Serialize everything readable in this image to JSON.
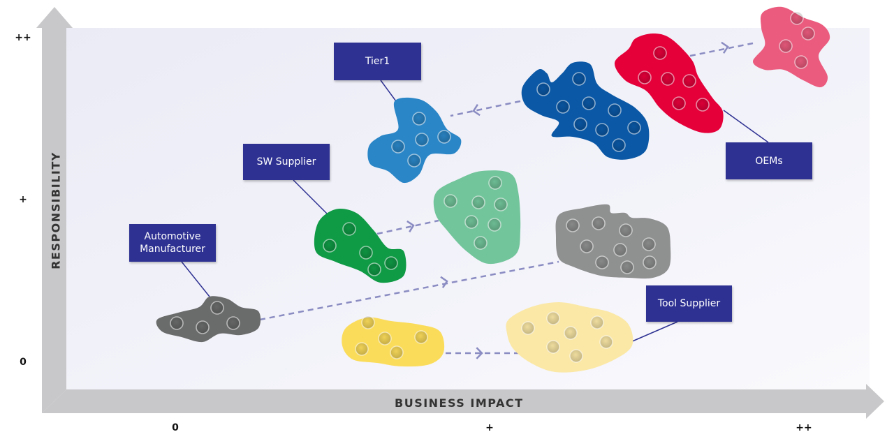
{
  "axes": {
    "x_title": "BUSINESS IMPACT",
    "y_title": "RESPONSIBILITY",
    "x_ticks": [
      "0",
      "+",
      "++"
    ],
    "y_ticks": [
      "++",
      "+",
      "0"
    ]
  },
  "labels": {
    "tier1": "Tier1",
    "sw_supplier": "SW Supplier",
    "automotive_manufacturer": "Automotive Manufacturer",
    "oems": "OEMs",
    "tool_supplier": "Tool Supplier"
  },
  "colors": {
    "label_box": "#2e3192",
    "arrow": "#8a8cc2",
    "axis": "#c8c8ca",
    "plot_bg": "#eeeef8",
    "automotive_manufacturer": "#6a6b6b",
    "automotive_manufacturer_future": "#8f9090",
    "sw_supplier": "#0f9a45",
    "sw_supplier_future": "#72c59b",
    "tier1": "#2a86c7",
    "tier1_current": "#0a58a6",
    "oems": "#e5003a",
    "oems_future": "#eb5b7e",
    "tool_supplier": "#fbdc5a",
    "tool_supplier_future": "#fbe8a6"
  }
}
